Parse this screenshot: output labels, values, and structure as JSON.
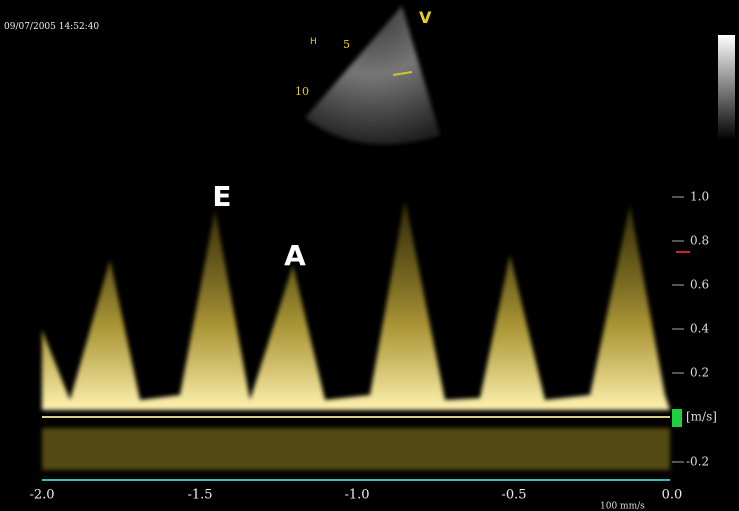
{
  "header": {
    "timestamp": "09/07/2005 14:52:40",
    "view_marker": "V",
    "probe_marker": "H"
  },
  "sector": {
    "depth_labels": [
      "5",
      "10"
    ]
  },
  "doppler": {
    "wave_labels": [
      "E",
      "A"
    ],
    "velocity_ticks": [
      "1.0",
      "0.8",
      "0.6",
      "0.4",
      "0.2",
      "-0.2"
    ],
    "velocity_unit": "[m/s]",
    "time_ticks": [
      "-2.0",
      "-1.5",
      "-1.0",
      "-0.5",
      "0.0"
    ],
    "sweep_speed": "100 mm/s"
  }
}
